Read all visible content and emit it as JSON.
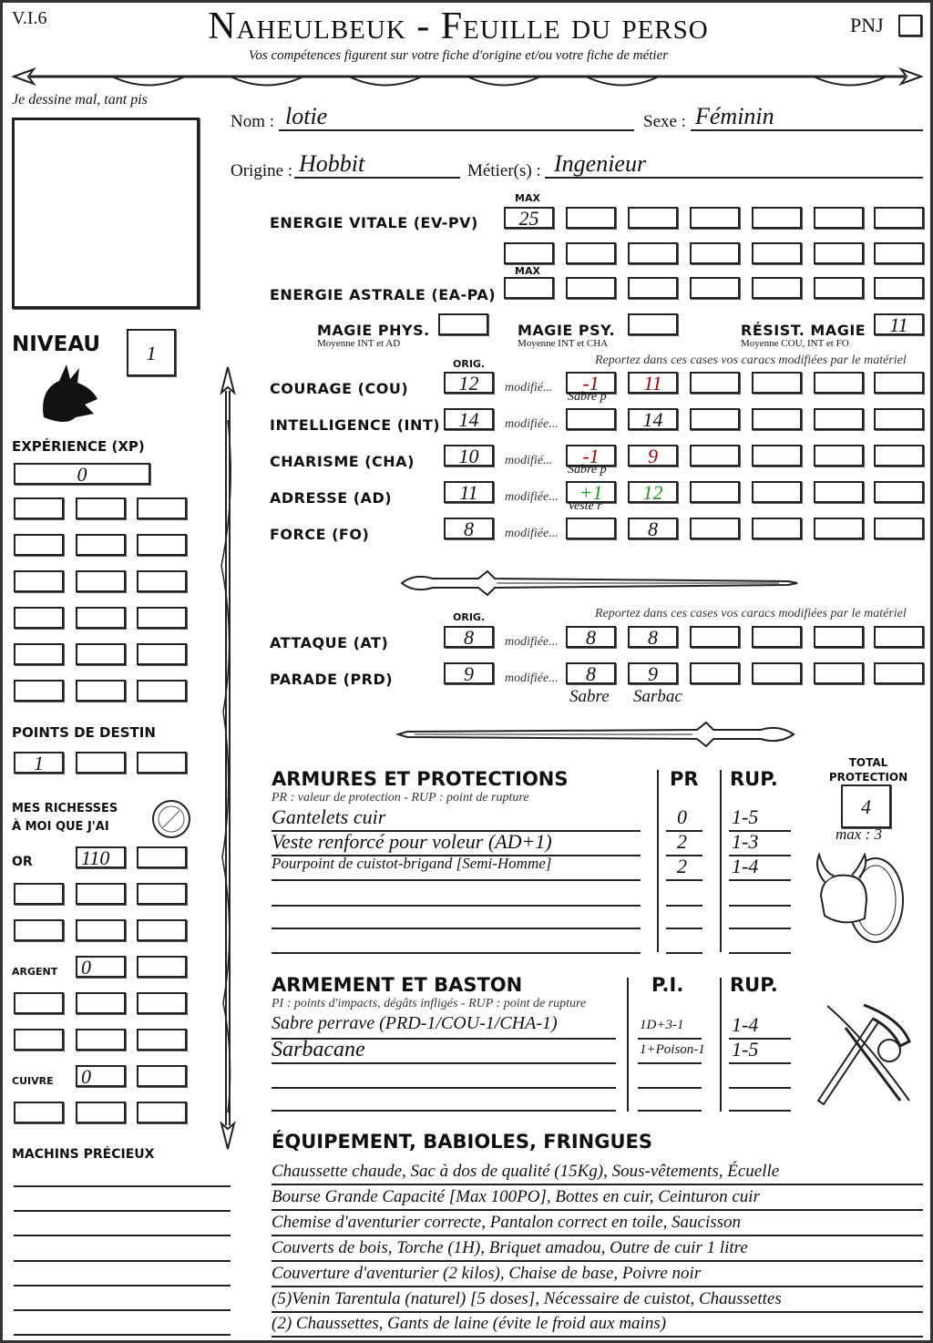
{
  "header": {
    "version": "V.I.6",
    "title": "Naheulbeuk - Feuille du perso",
    "subtitle": "Vos compétences figurent sur votre fiche d'origine et/ou votre fiche de métier",
    "pnj_label": "PNJ",
    "pnj_checked": false
  },
  "portrait": {
    "caption": "Je dessine mal, tant pis"
  },
  "identity": {
    "nom_label": "Nom :",
    "nom": "lotie",
    "sexe_label": "Sexe :",
    "sexe": "Féminin",
    "origine_label": "Origine :",
    "origine": "Hobbit",
    "metier_label": "Métier(s) :",
    "metier": "Ingenieur"
  },
  "energy": {
    "max_label": "MAX",
    "ev_label": "Energie vitale (EV-PV)",
    "ev_values": [
      "25",
      "",
      "",
      "",
      "",
      "",
      "",
      "",
      "",
      "",
      "",
      "",
      "",
      ""
    ],
    "ea_label": "Energie astrale (EA-PA)",
    "ea_values": [
      "",
      "",
      "",
      "",
      "",
      "",
      ""
    ]
  },
  "magic": {
    "phys_label": "Magie phys.",
    "phys_note": "Moyenne INT et AD",
    "phys": "",
    "psy_label": "Magie psy.",
    "psy_note": "Moyenne INT et CHA",
    "psy": "",
    "resist_label": "Résist. magie",
    "resist_note": "Moyenne COU, INT et FO",
    "resist": "11"
  },
  "stats": {
    "orig_label": "ORIG.",
    "report_note": "Reportez dans ces cases vos caracs modifiées par le matériel",
    "rows": [
      {
        "label": "Courage (COU)",
        "orig": "12",
        "mod_label": "modifié...",
        "cells": [
          "-1",
          "11",
          "",
          "",
          "",
          ""
        ],
        "colors": [
          "#a00000",
          "#a00000"
        ],
        "note": "Sabre p"
      },
      {
        "label": "Intelligence (INT)",
        "orig": "14",
        "mod_label": "modifiée...",
        "cells": [
          "",
          "14",
          "",
          "",
          "",
          ""
        ],
        "colors": [
          "#111",
          "#111"
        ],
        "note": ""
      },
      {
        "label": "Charisme (CHA)",
        "orig": "10",
        "mod_label": "modifié...",
        "cells": [
          "-1",
          "9",
          "",
          "",
          "",
          ""
        ],
        "colors": [
          "#a00000",
          "#a00000"
        ],
        "note": "Sabre p"
      },
      {
        "label": "Adresse (AD)",
        "orig": "11",
        "mod_label": "modifiée...",
        "cells": [
          "+1",
          "12",
          "",
          "",
          "",
          ""
        ],
        "colors": [
          "#1a9a1a",
          "#1a9a1a"
        ],
        "note": "Veste r"
      },
      {
        "label": "Force (FO)",
        "orig": "8",
        "mod_label": "modifiée...",
        "cells": [
          "",
          "8",
          "",
          "",
          "",
          ""
        ],
        "colors": [
          "#111",
          "#111"
        ],
        "note": ""
      }
    ]
  },
  "combat": {
    "orig_label": "ORIG.",
    "report_note": "Reportez dans ces cases vos caracs modifiées par le matériel",
    "rows": [
      {
        "label": "Attaque (AT)",
        "orig": "8",
        "mod_label": "modifiée...",
        "cells": [
          "8",
          "8",
          "",
          "",
          "",
          ""
        ]
      },
      {
        "label": "Parade (PRD)",
        "orig": "9",
        "mod_label": "modifiée...",
        "cells": [
          "8",
          "9",
          "",
          "",
          "",
          ""
        ]
      }
    ],
    "notes": [
      "Sabre",
      "Sarbac"
    ]
  },
  "armor": {
    "title": "Armures et protections",
    "pr_label": "PR",
    "rup_label": "RUP.",
    "legend": "PR : valeur de protection - RUP : point de rupture",
    "items": [
      {
        "name": "Gantelets cuir",
        "pr": "0",
        "rup": "1-5"
      },
      {
        "name": "Veste renforcé pour voleur (AD+1)",
        "pr": "2",
        "rup": "1-3"
      },
      {
        "name": "Pourpoint de cuistot-brigand [Semi-Homme]",
        "pr": "2",
        "rup": "1-4"
      },
      {
        "name": "",
        "pr": "",
        "rup": ""
      },
      {
        "name": "",
        "pr": "",
        "rup": ""
      },
      {
        "name": "",
        "pr": "",
        "rup": ""
      }
    ],
    "total_label": "Total protection",
    "total": "4",
    "max_note": "max : 3"
  },
  "weapons": {
    "title": "Armement et baston",
    "pi_label": "P.I.",
    "rup_label": "RUP.",
    "legend": "PI : points d'impacts, dégâts infligés - RUP : point de rupture",
    "items": [
      {
        "name": "Sabre perrave (PRD-1/COU-1/CHA-1)",
        "pi": "1D+3-1",
        "rup": "1-4"
      },
      {
        "name": "Sarbacane",
        "pi": "1+Poison-1",
        "rup": "1-5"
      },
      {
        "name": "",
        "pi": "",
        "rup": ""
      },
      {
        "name": "",
        "pi": "",
        "rup": ""
      }
    ]
  },
  "equipment": {
    "title": "Équipement, babioles, fringues",
    "lines": [
      "Chaussette chaude, Sac à dos de qualité (15Kg), Sous-vêtements, Écuelle",
      "Bourse Grande Capacité [Max 100PO], Bottes en cuir, Ceinturon cuir",
      "Chemise d'aventurier correcte, Pantalon correct en toile, Saucisson",
      "Couverts de bois, Torche (1H), Briquet amadou, Outre de cuir 1 litre",
      "Couverture d'aventurier (2 kilos), Chaise de base, Poivre noir",
      "(5)Venin Tarentula (naturel) [5 doses], Nécessaire de cuistot, Chaussettes",
      "(2) Chaussettes, Gants de laine (évite le froid aux mains)"
    ]
  },
  "left": {
    "niveau_label": "Niveau",
    "niveau": "1",
    "xp_label": "Expérience (XP)",
    "xp": "0",
    "destin_label": "Points de destin",
    "destin": [
      "1",
      "",
      ""
    ],
    "richesses_label_1": "Mes richesses",
    "richesses_label_2": "à moi que j'ai",
    "or_label": "OR",
    "or": "110",
    "argent_label": "ARGENT",
    "argent": "0",
    "cuivre_label": "CUIVRE",
    "cuivre": "0",
    "precieux_label": "Machins précieux"
  }
}
